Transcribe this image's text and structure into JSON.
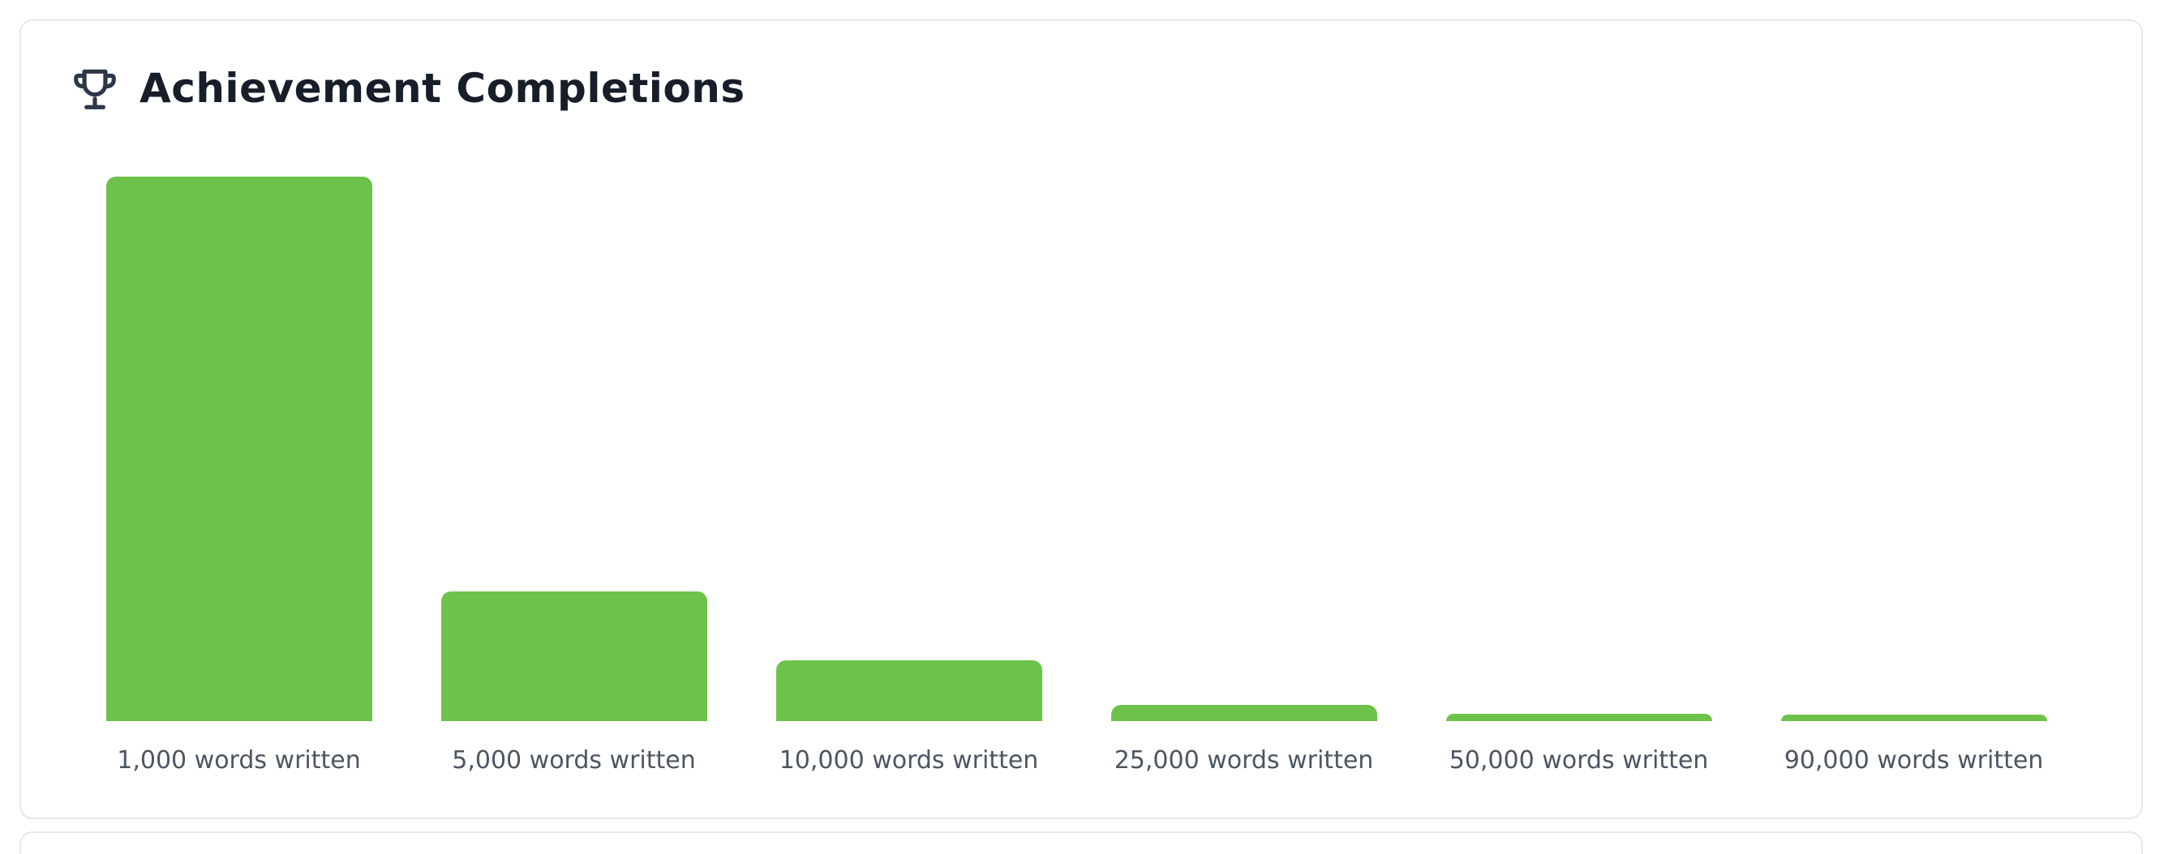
{
  "card": {
    "title": "Achievement Completions"
  },
  "chart_data": {
    "type": "bar",
    "title": "Achievement Completions",
    "categories": [
      "1,000 words written",
      "5,000 words written",
      "10,000 words written",
      "25,000 words written",
      "50,000 words written",
      "90,000 words written"
    ],
    "values": [
      100,
      23.8,
      11.2,
      3.0,
      1.3,
      1.2
    ],
    "xlabel": "",
    "ylabel": "",
    "ylim": [
      0,
      100
    ],
    "grid": false,
    "legend": false,
    "value_axis_hidden": true,
    "bar_color": "#6cc24a"
  },
  "colors": {
    "bar_green": "#6cc24a",
    "title_text": "#171e29",
    "icon_navy": "#2d3748",
    "label_gray": "#4d5562",
    "card_border": "#e8e8ec",
    "background": "#ffffff"
  }
}
